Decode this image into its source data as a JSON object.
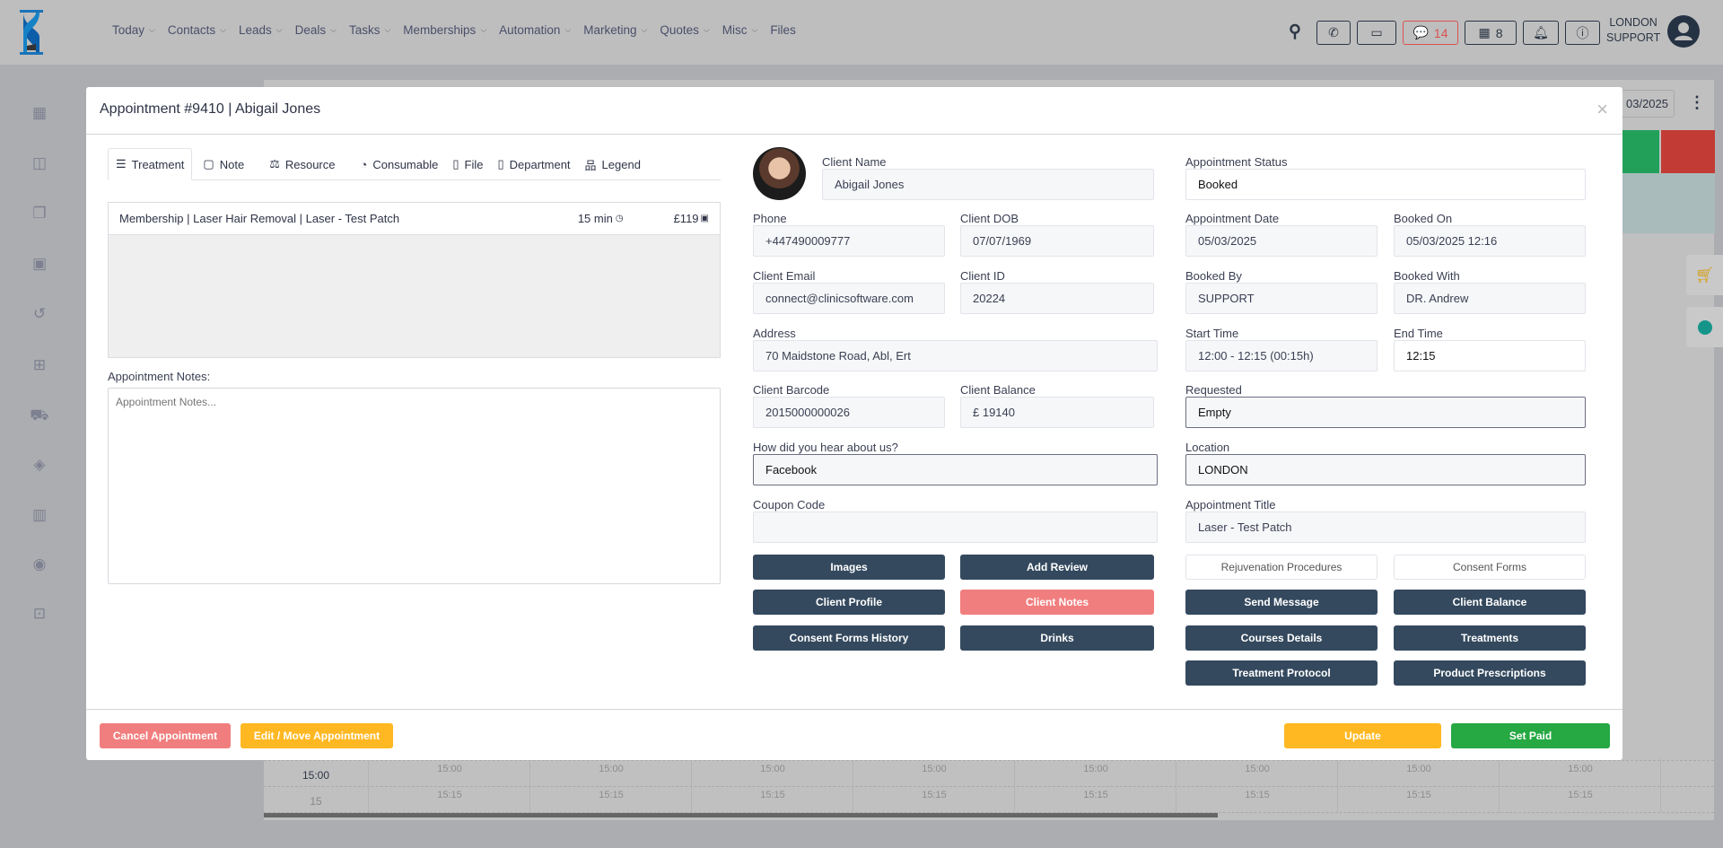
{
  "nav": {
    "items": [
      "Today",
      "Contacts",
      "Leads",
      "Deals",
      "Tasks",
      "Memberships",
      "Automation",
      "Marketing",
      "Quotes",
      "Misc",
      "Files"
    ],
    "has_dropdown": [
      true,
      true,
      true,
      true,
      true,
      true,
      true,
      true,
      true,
      true,
      false
    ]
  },
  "header": {
    "chat_count": "14",
    "store_count": "8",
    "user_location": "LONDON",
    "user_name": "SUPPORT",
    "chat_color": "#d9534f"
  },
  "calendar": {
    "date_partial": "03/2025",
    "time_row_1": "15:00",
    "time_row_2": "15",
    "slot_1": "15:00",
    "slot_2": "15:15",
    "header_colors": [
      "#22a05a",
      "#c23b35"
    ]
  },
  "modal": {
    "title": "Appointment #9410 | Abigail Jones",
    "tabs": [
      "Treatment",
      "Note",
      "Resource",
      "Consumable",
      "File",
      "Department",
      "Legend"
    ],
    "treatment": {
      "name": "Membership | Laser Hair Removal | Laser - Test Patch",
      "duration": "15 min",
      "price": "£119"
    },
    "notes_label": "Appointment Notes:",
    "notes_placeholder": "Appointment Notes...",
    "fields": {
      "client_name": {
        "label": "Client Name",
        "value": "Abigail Jones"
      },
      "phone": {
        "label": "Phone",
        "value": "+447490009777"
      },
      "dob": {
        "label": "Client DOB",
        "value": "07/07/1969"
      },
      "email": {
        "label": "Client Email",
        "value": "connect@clinicsoftware.com"
      },
      "client_id": {
        "label": "Client ID",
        "value": "20224"
      },
      "address": {
        "label": "Address",
        "value": "70  Maidstone Road, Abl, Ert"
      },
      "barcode": {
        "label": "Client Barcode",
        "value": "2015000000026"
      },
      "balance": {
        "label": "Client Balance",
        "value": "£ 19140"
      },
      "hear": {
        "label": "How did you hear about us?",
        "value": "Facebook"
      },
      "coupon": {
        "label": "Coupon Code",
        "value": ""
      },
      "status": {
        "label": "Appointment Status",
        "value": "Booked"
      },
      "appt_date": {
        "label": "Appointment Date",
        "value": "05/03/2025"
      },
      "booked_on": {
        "label": "Booked On",
        "value": "05/03/2025 12:16"
      },
      "booked_by": {
        "label": "Booked By",
        "value": "SUPPORT"
      },
      "booked_with": {
        "label": "Booked With",
        "value": "DR. Andrew"
      },
      "start": {
        "label": "Start Time",
        "value": "12:00 - 12:15 (00:15h)"
      },
      "end": {
        "label": "End Time",
        "value": "12:15"
      },
      "requested": {
        "label": "Requested",
        "value": "Empty"
      },
      "location": {
        "label": "Location",
        "value": "LONDON"
      },
      "appt_title": {
        "label": "Appointment Title",
        "value": "Laser - Test Patch"
      }
    },
    "buttons": {
      "images": "Images",
      "add_review": "Add Review",
      "rejuvenation": "Rejuvenation Procedures",
      "consent_forms": "Consent Forms",
      "client_profile": "Client Profile",
      "client_notes": "Client Notes",
      "send_message": "Send Message",
      "client_balance": "Client Balance",
      "consent_history": "Consent Forms History",
      "drinks": "Drinks",
      "courses": "Courses Details",
      "treatments": "Treatments",
      "protocol": "Treatment Protocol",
      "prescriptions": "Product Prescriptions"
    },
    "footer": {
      "cancel": "Cancel Appointment",
      "edit": "Edit / Move Appointment",
      "update": "Update",
      "set_paid": "Set Paid"
    }
  }
}
